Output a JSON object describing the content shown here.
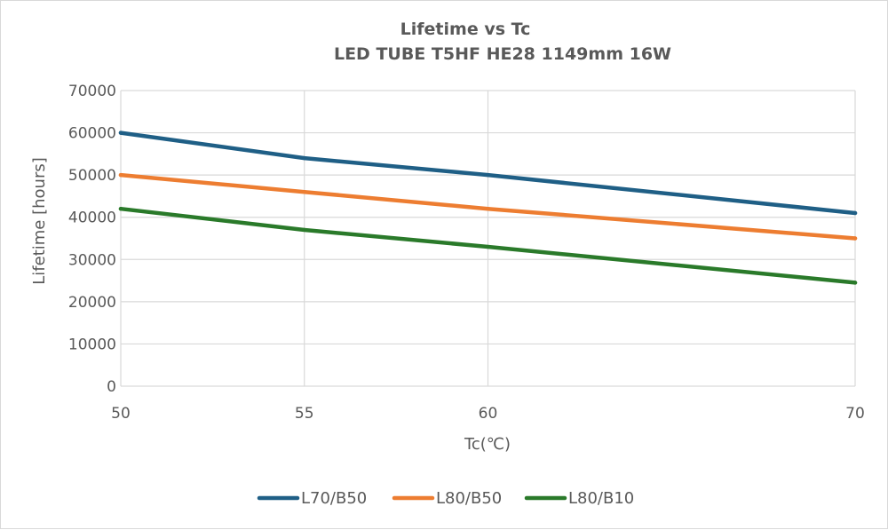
{
  "chart_data": {
    "type": "line",
    "title_line1": "Lifetime vs Tc",
    "title_line2": "LED TUBE T5HF HE28 1149mm 16W",
    "xlabel": "Tc(℃)",
    "ylabel": "Lifetime [hours]",
    "x": [
      50,
      55,
      60,
      70
    ],
    "x_ticks": [
      50,
      55,
      60,
      70
    ],
    "x_tick_labels": [
      "50",
      "55",
      "60",
      "70"
    ],
    "xlim": [
      50,
      70
    ],
    "ylim": [
      0,
      70000
    ],
    "y_ticks": [
      0,
      10000,
      20000,
      30000,
      40000,
      50000,
      60000,
      70000
    ],
    "y_tick_labels": [
      "0",
      "10000",
      "20000",
      "30000",
      "40000",
      "50000",
      "60000",
      "70000"
    ],
    "grid": true,
    "legend_position": "bottom",
    "series": [
      {
        "name": "L70/B50",
        "color": "#1f5f86",
        "values": [
          60000,
          54000,
          50000,
          41000
        ]
      },
      {
        "name": "L80/B50",
        "color": "#ed7d31",
        "values": [
          50000,
          46000,
          42000,
          35000
        ]
      },
      {
        "name": "L80/B10",
        "color": "#2a7a2a",
        "values": [
          42000,
          37000,
          33000,
          24500
        ]
      }
    ]
  }
}
